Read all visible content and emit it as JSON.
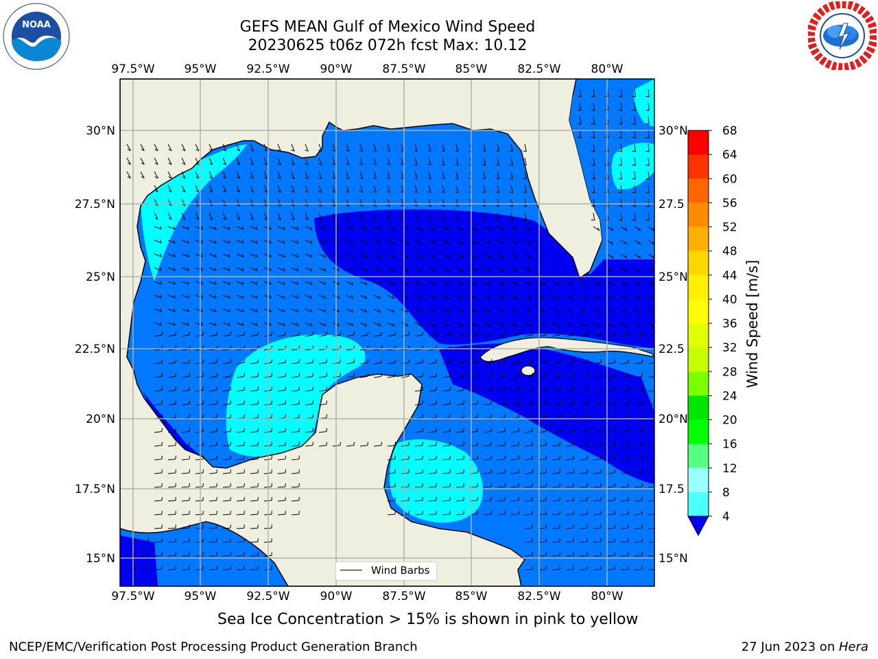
{
  "header": {
    "title_line1": "GEFS MEAN Gulf of Mexico Wind Speed",
    "title_line2": "20230625 t06z 072h fcst   Max: 10.12"
  },
  "logos": {
    "left": "noaa-logo",
    "left_text": "NOAA",
    "right": "national-weather-service-logo"
  },
  "map": {
    "lon_labels": [
      "97.5°W",
      "95°W",
      "92.5°W",
      "90°W",
      "87.5°W",
      "85°W",
      "82.5°W",
      "80°W"
    ],
    "lat_labels_left": [
      "30°N",
      "27.5°N",
      "25°N",
      "22.5°N",
      "20°N",
      "17.5°N",
      "15°N"
    ],
    "lat_labels_right": [
      "30°N",
      "27.5",
      "25°N",
      "22.5",
      "20°N",
      "17.5",
      "15°N"
    ],
    "colors": {
      "land": "#efefdf",
      "wind_4_8": "#0078ff",
      "wind_8_12": "#00ffff",
      "wind_below_4": "#0000f0",
      "wind_8_12_light": "#33ffff",
      "grid": "#b0b0b0"
    }
  },
  "legend": {
    "label": "Wind Barbs"
  },
  "colorbar": {
    "label": "Wind Speed [m/s]",
    "ticks": [
      "68",
      "64",
      "60",
      "56",
      "52",
      "48",
      "44",
      "40",
      "36",
      "32",
      "28",
      "24",
      "20",
      "16",
      "12",
      "8",
      "4"
    ],
    "colors": [
      "#ff0000",
      "#ff3300",
      "#ff6600",
      "#ff8c00",
      "#ffb000",
      "#ffd500",
      "#fff000",
      "#ffff00",
      "#e2ff00",
      "#c6ff00",
      "#7cff00",
      "#00e600",
      "#00ff00",
      "#55ff7f",
      "#99ffff",
      "#4dffff",
      "#00ffff",
      "#0078ff"
    ],
    "extend_color": "#0000f0"
  },
  "caption": "Sea Ice Concentration > 15% is shown in pink to yellow",
  "footer": {
    "left": "NCEP/EMC/Verification Post Processing Product Generation Branch",
    "right_date": "27 Jun 2023 on ",
    "right_host": "Hera"
  }
}
